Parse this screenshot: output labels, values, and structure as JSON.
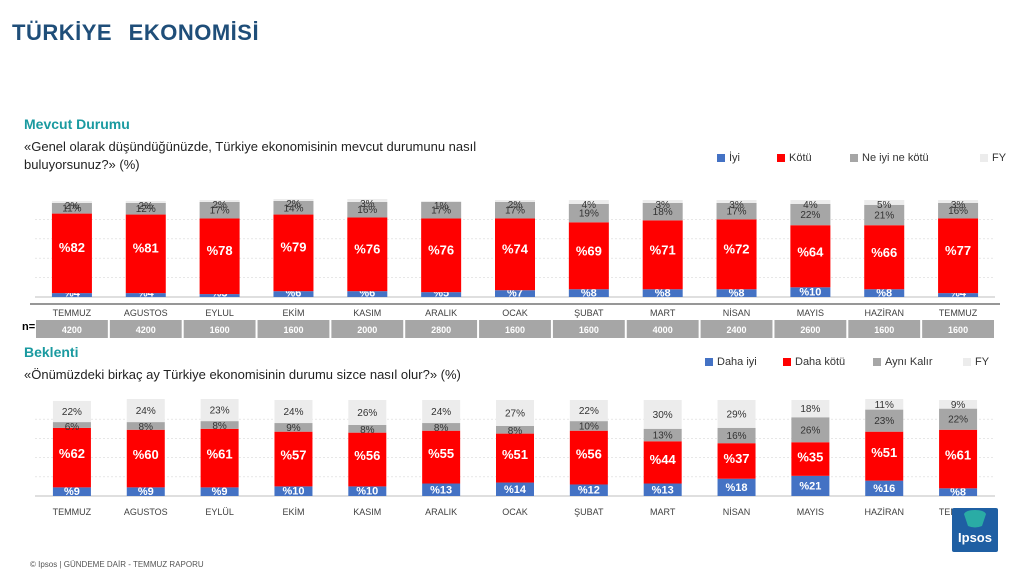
{
  "title": "TÜRKİYE   EKONOMİSİ",
  "section1": {
    "heading": "Mevcut Durumu",
    "question_line1": "«Genel olarak düşündüğünüzde, Türkiye ekonomisinin mevcut durumunu nasıl",
    "question_line2": "buluyorsunuz?» (%)",
    "legend": [
      "İyi",
      "Kötü",
      "Ne iyi ne kötü",
      "FY"
    ]
  },
  "section2": {
    "heading": "Beklenti",
    "question": "«Önümüzdeki birkaç ay Türkiye ekonomisinin durumu  sizce nasıl olur?» (%)",
    "legend": [
      "Daha iyi",
      "Daha kötü",
      "Aynı Kalır",
      "FY"
    ]
  },
  "n_label": "n=",
  "footer": "© Ipsos | GÜNDEME  DAİR - TEMMUZ  RAPORU",
  "logo_text": "Ipsos",
  "colors": {
    "blue": "#4472c4",
    "red": "#ff0000",
    "gray": "#a6a6a6",
    "light": "#ececec",
    "title": "#1f4e79",
    "heading": "#1a9aa0"
  },
  "chart_data": [
    {
      "type": "bar",
      "stacked": true,
      "title": "Mevcut Durumu",
      "categories": [
        "TEMMUZ",
        "AGUSTOS",
        "EYLUL",
        "EKİM",
        "KASIM",
        "ARALIK",
        "OCAK",
        "ŞUBAT",
        "MART",
        "NİSAN",
        "MAYIS",
        "HAZİRAN",
        "TEMMUZ"
      ],
      "series": [
        {
          "name": "İyi",
          "values": [
            4,
            4,
            3,
            6,
            6,
            5,
            7,
            8,
            8,
            8,
            10,
            8,
            4
          ],
          "labels": [
            "%4",
            "%4",
            "%3",
            "%6",
            "%6",
            "%5",
            "%7",
            "%8",
            "%8",
            "%8",
            "%10",
            "%8",
            "%4"
          ]
        },
        {
          "name": "Kötü",
          "values": [
            82,
            81,
            78,
            79,
            76,
            76,
            74,
            69,
            71,
            72,
            64,
            66,
            77
          ],
          "labels": [
            "%82",
            "%81",
            "%78",
            "%79",
            "%76",
            "%76",
            "%74",
            "%69",
            "%71",
            "%72",
            "%64",
            "%66",
            "%77"
          ]
        },
        {
          "name": "Ne iyi ne kötü",
          "values": [
            11,
            12,
            17,
            14,
            16,
            17,
            17,
            19,
            18,
            17,
            22,
            21,
            16
          ],
          "labels": [
            "11%",
            "12%",
            "17%",
            "14%",
            "16%",
            "17%",
            "17%",
            "19%",
            "18%",
            "17%",
            "22%",
            "21%",
            "16%"
          ]
        },
        {
          "name": "FY",
          "values": [
            2,
            2,
            2,
            2,
            3,
            1,
            2,
            4,
            3,
            3,
            4,
            5,
            3
          ],
          "labels": [
            "2%",
            "2%",
            "2%",
            "2%",
            "3%",
            "1%",
            "2%",
            "4%",
            "3%",
            "3%",
            "4%",
            "5%",
            "3%"
          ]
        }
      ],
      "n": [
        "4200",
        "4200",
        "1600",
        "1600",
        "2000",
        "2800",
        "1600",
        "1600",
        "4000",
        "2400",
        "2600",
        "1600",
        "1600"
      ],
      "ylim": [
        0,
        100
      ],
      "grid": true,
      "legend_position": "top-right"
    },
    {
      "type": "bar",
      "stacked": true,
      "title": "Beklenti",
      "categories": [
        "TEMMUZ",
        "AGUSTOS",
        "EYLÜL",
        "EKİM",
        "KASIM",
        "ARALIK",
        "OCAK",
        "ŞUBAT",
        "MART",
        "NİSAN",
        "MAYIS",
        "HAZİRAN",
        "TEMMUZ"
      ],
      "series": [
        {
          "name": "Daha iyi",
          "values": [
            9,
            9,
            9,
            10,
            10,
            13,
            14,
            12,
            13,
            18,
            21,
            16,
            8
          ],
          "labels": [
            "%9",
            "%9",
            "%9",
            "%10",
            "%10",
            "%13",
            "%14",
            "%12",
            "%13",
            "%18",
            "%21",
            "%16",
            "%8"
          ]
        },
        {
          "name": "Daha kötü",
          "values": [
            62,
            60,
            61,
            57,
            56,
            55,
            51,
            56,
            44,
            37,
            35,
            51,
            61
          ],
          "labels": [
            "%62",
            "%60",
            "%61",
            "%57",
            "%56",
            "%55",
            "%51",
            "%56",
            "%44",
            "%37",
            "%35",
            "%51",
            "%61"
          ]
        },
        {
          "name": "Aynı Kalır",
          "values": [
            6,
            8,
            8,
            9,
            8,
            8,
            8,
            10,
            13,
            16,
            26,
            23,
            22
          ],
          "labels": [
            "6%",
            "8%",
            "8%",
            "9%",
            "8%",
            "8%",
            "8%",
            "10%",
            "13%",
            "16%",
            "26%",
            "23%",
            "22%"
          ]
        },
        {
          "name": "FY",
          "values": [
            22,
            24,
            23,
            24,
            26,
            24,
            27,
            22,
            30,
            29,
            18,
            11,
            9
          ],
          "labels": [
            "22%",
            "24%",
            "23%",
            "24%",
            "26%",
            "24%",
            "27%",
            "22%",
            "30%",
            "29%",
            "18%",
            "11%",
            "9%"
          ]
        }
      ],
      "ylim": [
        0,
        100
      ],
      "grid": true,
      "legend_position": "top-right"
    }
  ]
}
